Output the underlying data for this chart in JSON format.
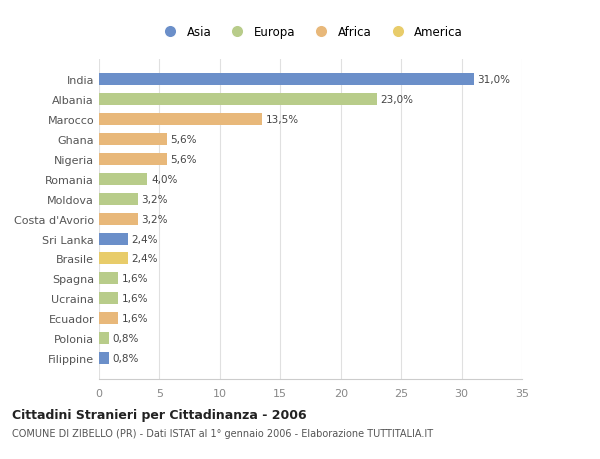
{
  "categories": [
    "Filippine",
    "Polonia",
    "Ecuador",
    "Ucraina",
    "Spagna",
    "Brasile",
    "Sri Lanka",
    "Costa d'Avorio",
    "Moldova",
    "Romania",
    "Nigeria",
    "Ghana",
    "Marocco",
    "Albania",
    "India"
  ],
  "values": [
    0.8,
    0.8,
    1.6,
    1.6,
    1.6,
    2.4,
    2.4,
    3.2,
    3.2,
    4.0,
    5.6,
    5.6,
    13.5,
    23.0,
    31.0
  ],
  "labels": [
    "0,8%",
    "0,8%",
    "1,6%",
    "1,6%",
    "1,6%",
    "2,4%",
    "2,4%",
    "3,2%",
    "3,2%",
    "4,0%",
    "5,6%",
    "5,6%",
    "13,5%",
    "23,0%",
    "31,0%"
  ],
  "colors": [
    "#6b8fc9",
    "#b8cc8a",
    "#e8b87a",
    "#b8cc8a",
    "#b8cc8a",
    "#e8cc6a",
    "#6b8fc9",
    "#e8b87a",
    "#b8cc8a",
    "#b8cc8a",
    "#e8b87a",
    "#e8b87a",
    "#e8b87a",
    "#b8cc8a",
    "#6b8fc9"
  ],
  "legend_labels": [
    "Asia",
    "Europa",
    "Africa",
    "America"
  ],
  "legend_colors": [
    "#6b8fc9",
    "#b8cc8a",
    "#e8b87a",
    "#e8cc6a"
  ],
  "title": "Cittadini Stranieri per Cittadinanza - 2006",
  "subtitle": "COMUNE DI ZIBELLO (PR) - Dati ISTAT al 1° gennaio 2006 - Elaborazione TUTTITALIA.IT",
  "xlim": [
    0,
    35
  ],
  "xticks": [
    0,
    5,
    10,
    15,
    20,
    25,
    30,
    35
  ],
  "background_color": "#ffffff",
  "grid_color": "#e0e0e0",
  "bar_height": 0.6
}
